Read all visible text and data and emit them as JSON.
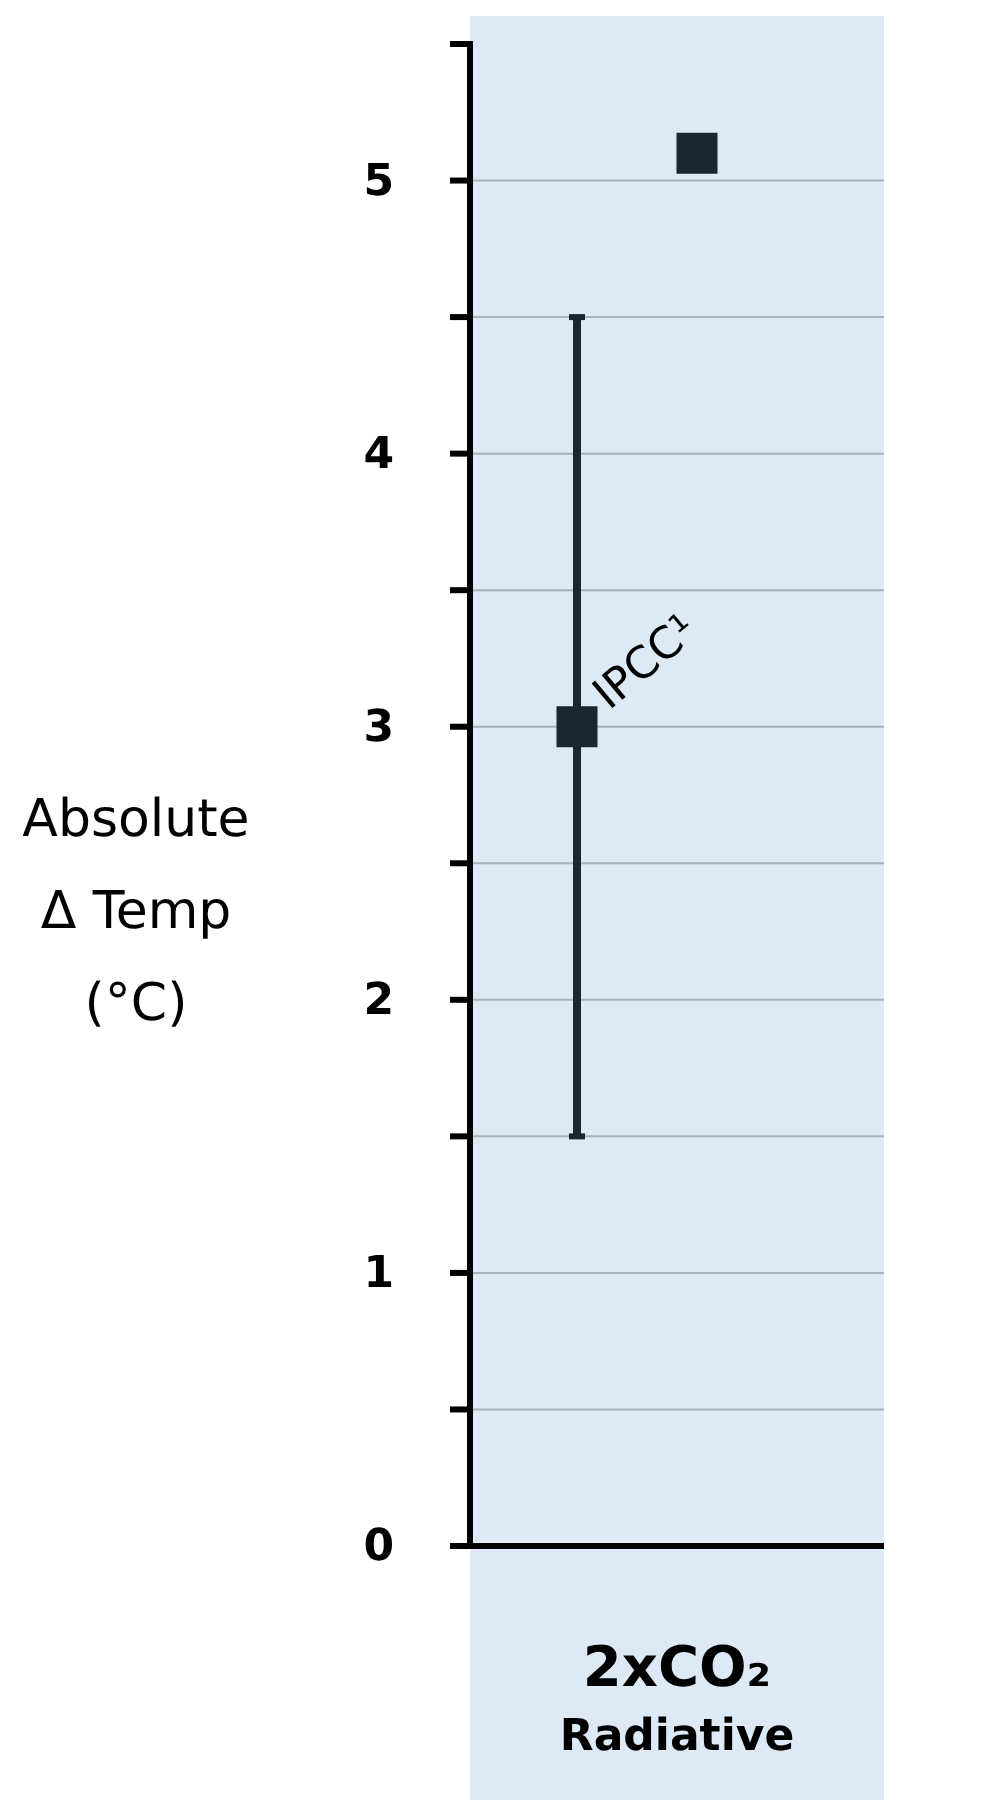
{
  "chart_data": {
    "type": "scatter",
    "ylabel": "Absolute\nΔ Temp\n(°C)",
    "categories": [
      "2xCO₂\nRadiative"
    ],
    "series": [
      {
        "name": "IPCC¹",
        "color": "#1c2633",
        "values": [
          3
        ],
        "errors": [
          [
            1.5,
            4.5
          ]
        ]
      },
      {
        "color": "#1c2633",
        "values": [
          5.1
        ]
      }
    ],
    "ylim": [
      0,
      5.5
    ],
    "yticks": [
      0,
      {
        "value": 0.5,
        "label": null
      },
      1,
      {
        "value": 1.5,
        "label": null
      },
      2,
      {
        "value": 2.5,
        "label": null
      },
      3,
      {
        "value": 3.5,
        "label": null
      },
      4,
      {
        "value": 4.5,
        "label": null
      },
      5
    ],
    "grid": "y",
    "marker": "square"
  }
}
